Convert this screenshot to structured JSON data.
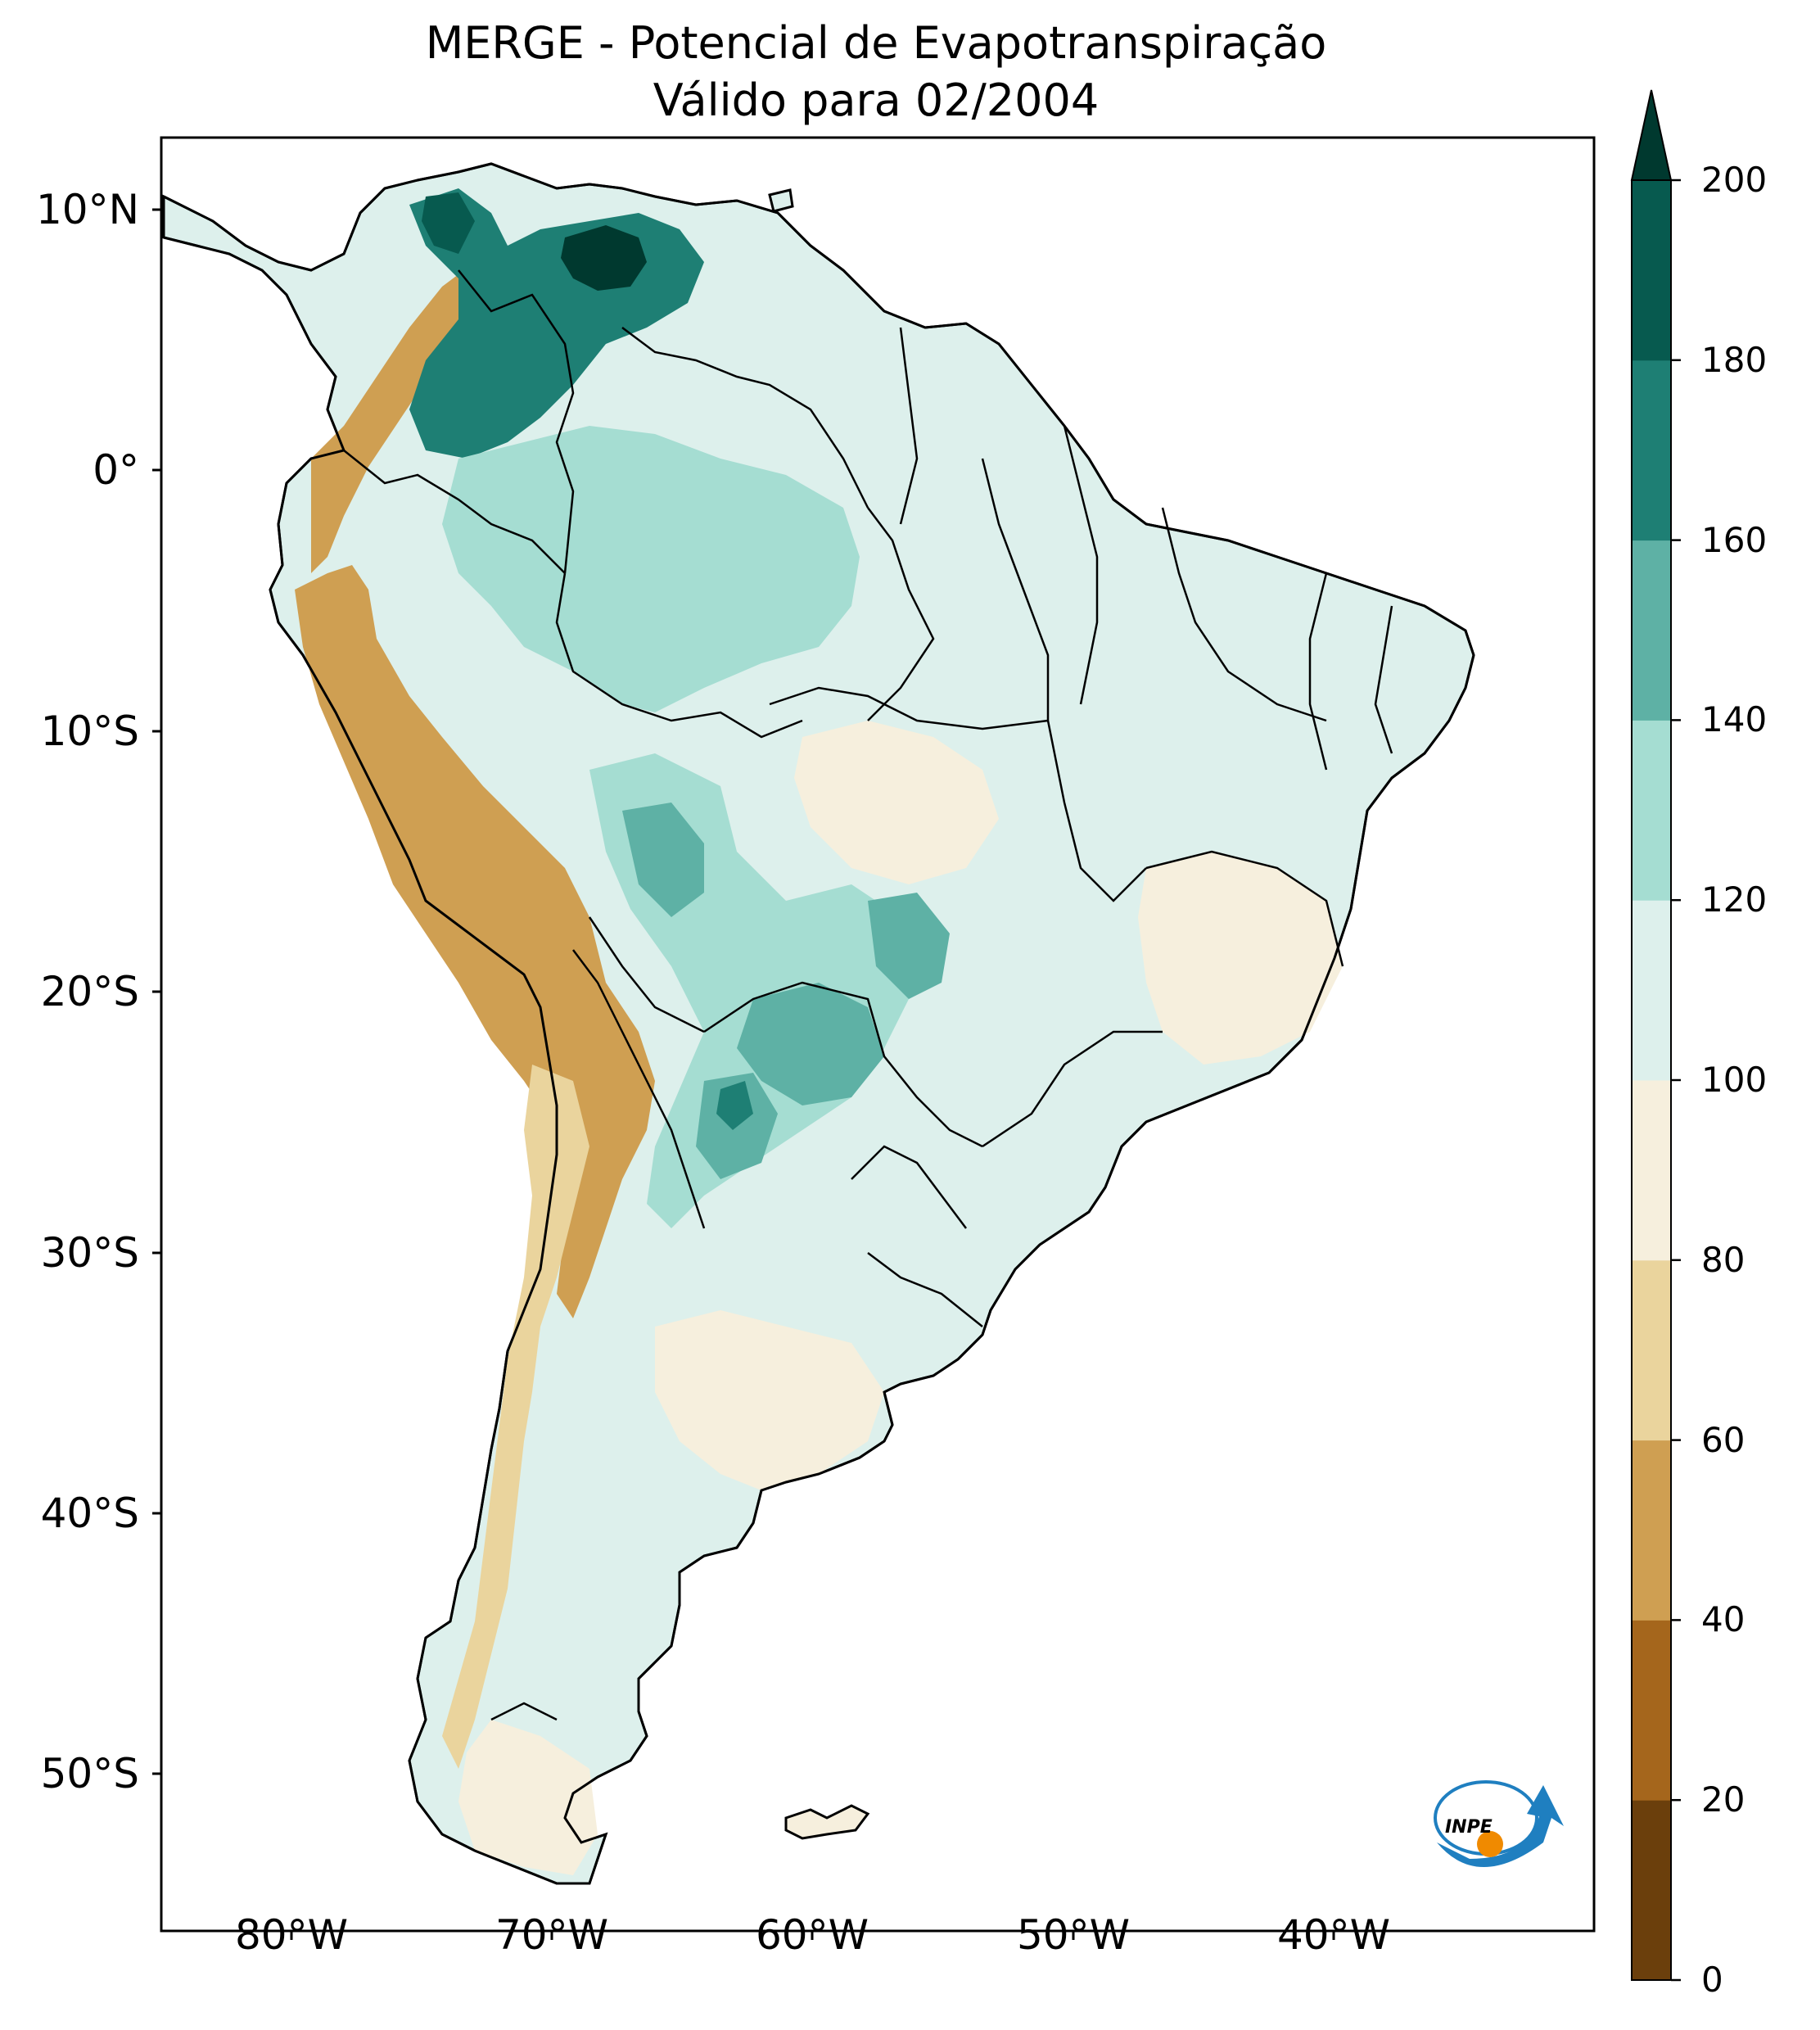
{
  "title": {
    "line1": "MERGE - Potencial de Evapotranspiração",
    "line2": "Válido para 02/2004"
  },
  "map": {
    "extent": {
      "lon_min": -85,
      "lon_max": -30,
      "lat_min": -56,
      "lat_max": 13
    },
    "lat_ticks": [
      {
        "value": 10,
        "label": "10°N"
      },
      {
        "value": 0,
        "label": "0°"
      },
      {
        "value": -10,
        "label": "10°S"
      },
      {
        "value": -20,
        "label": "20°S"
      },
      {
        "value": -30,
        "label": "30°S"
      },
      {
        "value": -40,
        "label": "40°S"
      },
      {
        "value": -50,
        "label": "50°S"
      }
    ],
    "lon_ticks": [
      {
        "value": -80,
        "label": "80°W"
      },
      {
        "value": -70,
        "label": "70°W"
      },
      {
        "value": -60,
        "label": "60°W"
      },
      {
        "value": -50,
        "label": "50°W"
      },
      {
        "value": -40,
        "label": "40°W"
      }
    ]
  },
  "colorbar": {
    "levels": [
      0,
      20,
      40,
      60,
      80,
      100,
      120,
      140,
      160,
      180,
      200
    ],
    "labels": [
      "0",
      "20",
      "40",
      "60",
      "80",
      "100",
      "120",
      "140",
      "160",
      "180",
      "200"
    ],
    "colors": [
      "#6b3f0c",
      "#a5661c",
      "#cf9f52",
      "#ead49d",
      "#f6efdd",
      "#ddf0ec",
      "#a5ddd2",
      "#5eb1a5",
      "#1e7f74",
      "#075a4f"
    ],
    "extend_color": "#00392f",
    "extend": "max"
  },
  "logo": {
    "text": "INPE"
  }
}
